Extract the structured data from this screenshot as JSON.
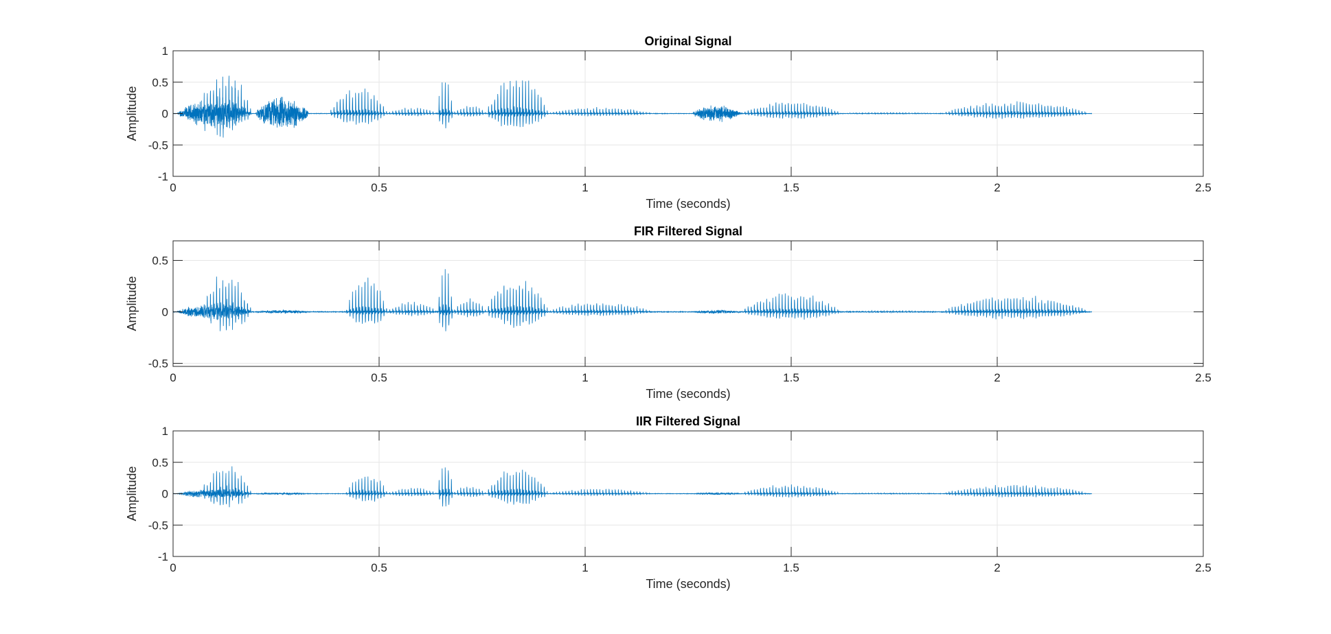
{
  "chart_data": [
    {
      "type": "line",
      "title": "Original Signal",
      "xlabel": "Time (seconds)",
      "ylabel": "Amplitude",
      "xlim": [
        0,
        2.5
      ],
      "ylim": [
        -1,
        1
      ],
      "xticks": [
        0,
        0.5,
        1,
        1.5,
        2,
        2.5
      ],
      "xtick_labels": [
        "0",
        "0.5",
        "1",
        "1.5",
        "2",
        "2.5"
      ],
      "yticks": [
        -1,
        -0.5,
        0,
        0.5,
        1
      ],
      "ytick_labels": [
        "-1",
        "-0.5",
        "0",
        "0.5",
        "1"
      ],
      "grid": true,
      "color": "#0072BD",
      "signal_end": 2.23,
      "segments": [
        {
          "start": 0.01,
          "end": 0.19,
          "kind": "noise",
          "peak": 0.25
        },
        {
          "start": 0.07,
          "end": 0.19,
          "kind": "voiced",
          "peak": 1.0
        },
        {
          "start": 0.2,
          "end": 0.33,
          "kind": "noise",
          "peak": 0.3
        },
        {
          "start": 0.38,
          "end": 0.52,
          "kind": "voiced",
          "peak": 0.65
        },
        {
          "start": 0.52,
          "end": 0.64,
          "kind": "voiced",
          "peak": 0.15
        },
        {
          "start": 0.64,
          "end": 0.68,
          "kind": "voiced",
          "peak": 0.85
        },
        {
          "start": 0.68,
          "end": 0.76,
          "kind": "voiced",
          "peak": 0.2
        },
        {
          "start": 0.76,
          "end": 0.91,
          "kind": "voiced",
          "peak": 0.9
        },
        {
          "start": 0.91,
          "end": 1.16,
          "kind": "voiced",
          "peak": 0.15
        },
        {
          "start": 1.26,
          "end": 1.38,
          "kind": "noise",
          "peak": 0.15
        },
        {
          "start": 1.38,
          "end": 1.62,
          "kind": "voiced",
          "peak": 0.3
        },
        {
          "start": 1.62,
          "end": 1.86,
          "kind": "voiced",
          "peak": 0.03
        },
        {
          "start": 1.87,
          "end": 2.22,
          "kind": "voiced",
          "peak": 0.3
        }
      ]
    },
    {
      "type": "line",
      "title": "FIR Filtered Signal",
      "xlabel": "Time (seconds)",
      "ylabel": "Amplitude",
      "xlim": [
        0,
        2.5
      ],
      "ylim": [
        -0.53,
        0.69
      ],
      "xticks": [
        0,
        0.5,
        1,
        1.5,
        2,
        2.5
      ],
      "xtick_labels": [
        "0",
        "0.5",
        "1",
        "1.5",
        "2",
        "2.5"
      ],
      "yticks": [
        -0.5,
        0,
        0.5
      ],
      "ytick_labels": [
        "-0.5",
        "0",
        "0.5"
      ],
      "grid": true,
      "color": "#0072BD",
      "signal_end": 2.23,
      "segments": [
        {
          "start": 0.01,
          "end": 0.19,
          "kind": "noise",
          "peak": 0.08
        },
        {
          "start": 0.07,
          "end": 0.19,
          "kind": "voiced",
          "peak": 0.55
        },
        {
          "start": 0.2,
          "end": 0.33,
          "kind": "noise",
          "peak": 0.02
        },
        {
          "start": 0.42,
          "end": 0.52,
          "kind": "voiced",
          "peak": 0.5
        },
        {
          "start": 0.52,
          "end": 0.64,
          "kind": "voiced",
          "peak": 0.15
        },
        {
          "start": 0.64,
          "end": 0.68,
          "kind": "voiced",
          "peak": 0.68
        },
        {
          "start": 0.68,
          "end": 0.76,
          "kind": "voiced",
          "peak": 0.2
        },
        {
          "start": 0.76,
          "end": 0.91,
          "kind": "voiced",
          "peak": 0.55
        },
        {
          "start": 0.91,
          "end": 1.16,
          "kind": "voiced",
          "peak": 0.15
        },
        {
          "start": 1.26,
          "end": 1.38,
          "kind": "noise",
          "peak": 0.02
        },
        {
          "start": 1.38,
          "end": 1.62,
          "kind": "voiced",
          "peak": 0.28
        },
        {
          "start": 1.62,
          "end": 1.86,
          "kind": "voiced",
          "peak": 0.02
        },
        {
          "start": 1.87,
          "end": 2.22,
          "kind": "voiced",
          "peak": 0.25
        }
      ]
    },
    {
      "type": "line",
      "title": "IIR Filtered Signal",
      "xlabel": "Time (seconds)",
      "ylabel": "Amplitude",
      "xlim": [
        0,
        2.5
      ],
      "ylim": [
        -1,
        1
      ],
      "xticks": [
        0,
        0.5,
        1,
        1.5,
        2,
        2.5
      ],
      "xtick_labels": [
        "0",
        "0.5",
        "1",
        "1.5",
        "2",
        "2.5"
      ],
      "yticks": [
        -1,
        -0.5,
        0,
        0.5,
        1
      ],
      "ytick_labels": [
        "-1",
        "-0.5",
        "0",
        "0.5",
        "1"
      ],
      "grid": true,
      "color": "#0072BD",
      "signal_end": 2.23,
      "segments": [
        {
          "start": 0.01,
          "end": 0.19,
          "kind": "noise",
          "peak": 0.08
        },
        {
          "start": 0.07,
          "end": 0.19,
          "kind": "voiced",
          "peak": 0.65
        },
        {
          "start": 0.2,
          "end": 0.33,
          "kind": "noise",
          "peak": 0.02
        },
        {
          "start": 0.42,
          "end": 0.52,
          "kind": "voiced",
          "peak": 0.5
        },
        {
          "start": 0.52,
          "end": 0.64,
          "kind": "voiced",
          "peak": 0.15
        },
        {
          "start": 0.64,
          "end": 0.68,
          "kind": "voiced",
          "peak": 0.8
        },
        {
          "start": 0.68,
          "end": 0.76,
          "kind": "voiced",
          "peak": 0.2
        },
        {
          "start": 0.76,
          "end": 0.91,
          "kind": "voiced",
          "peak": 0.65
        },
        {
          "start": 0.91,
          "end": 1.16,
          "kind": "voiced",
          "peak": 0.12
        },
        {
          "start": 1.26,
          "end": 1.38,
          "kind": "noise",
          "peak": 0.02
        },
        {
          "start": 1.38,
          "end": 1.62,
          "kind": "voiced",
          "peak": 0.22
        },
        {
          "start": 1.62,
          "end": 1.86,
          "kind": "voiced",
          "peak": 0.02
        },
        {
          "start": 1.87,
          "end": 2.22,
          "kind": "voiced",
          "peak": 0.22
        }
      ]
    }
  ]
}
